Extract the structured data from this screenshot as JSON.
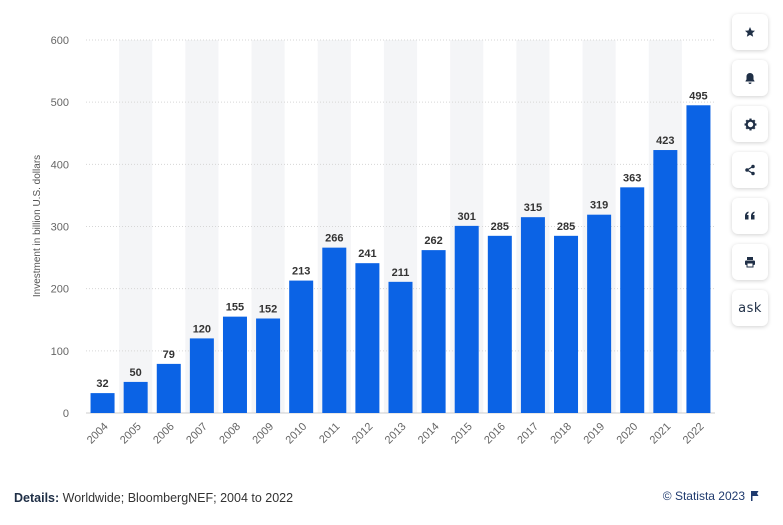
{
  "chart_data": {
    "type": "bar",
    "categories": [
      "2004",
      "2005",
      "2006",
      "2007",
      "2008",
      "2009",
      "2010",
      "2011",
      "2012",
      "2013",
      "2014",
      "2015",
      "2016",
      "2017",
      "2018",
      "2019",
      "2020",
      "2021",
      "2022"
    ],
    "values": [
      32,
      50,
      79,
      120,
      155,
      152,
      213,
      266,
      241,
      211,
      262,
      301,
      285,
      315,
      285,
      319,
      363,
      423,
      495
    ],
    "value_labels": [
      "32",
      "50",
      "79",
      "120",
      "155",
      "152",
      "213",
      "266",
      "241",
      "211",
      "262",
      "301",
      "285",
      "315",
      "285",
      "319",
      "363",
      "423",
      "495"
    ],
    "ylabel": "Investment in billion U.S. dollars",
    "ylim": [
      0,
      600
    ],
    "yticks": [
      "0",
      "100",
      "200",
      "300",
      "400",
      "500",
      "600"
    ],
    "ytick_values": [
      0,
      100,
      200,
      300,
      400,
      500,
      600
    ],
    "grid": true,
    "bar_color": "#0b63e5",
    "stripe_color": "#f4f5f7"
  },
  "footer": {
    "details_label": "Details:",
    "details_text": " Worldwide; BloombergNEF; 2004 to 2022",
    "copyright": "© Statista 2023"
  },
  "sidebar": {
    "ask_label": "ask",
    "icons": [
      "star-icon",
      "bell-icon",
      "gear-icon",
      "share-icon",
      "quote-icon",
      "print-icon"
    ]
  }
}
